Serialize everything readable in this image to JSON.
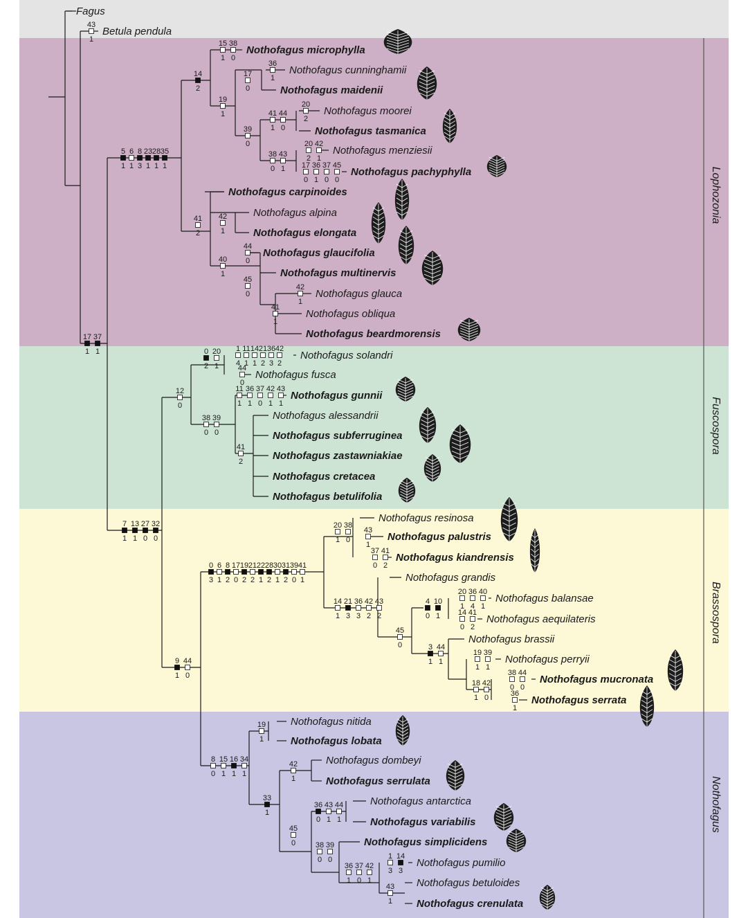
{
  "clades": {
    "lophozonia": "Lophozonia",
    "fuscospora": "Fuscospora",
    "brassospora": "Brassospora",
    "nothofagus": "Nothofagus"
  },
  "colors": {
    "outgroup": "#e4e4e5",
    "lophozonia": "#cdb0c5",
    "fuscospora": "#cde4d5",
    "brassospora": "#fdf8d5",
    "nothofagus": "#c8c6e2",
    "leaf_icon": "#1c1c1c"
  },
  "taxa": [
    {
      "name": "Fagus",
      "bold": false
    },
    {
      "name": "Betula pendula",
      "bold": false
    },
    {
      "name": "Nothofagus microphylla",
      "bold": true,
      "leaf": "rounded-leaf-icon"
    },
    {
      "name": "Nothofagus cunninghamii",
      "bold": false
    },
    {
      "name": "Nothofagus maidenii",
      "bold": true,
      "leaf": "serrate-leaf-icon"
    },
    {
      "name": "Nothofagus moorei",
      "bold": false
    },
    {
      "name": "Nothofagus tasmanica",
      "bold": true,
      "leaf": "narrow-leaf-icon"
    },
    {
      "name": "Nothofagus menziesii",
      "bold": false
    },
    {
      "name": "Nothofagus pachyphylla",
      "bold": true,
      "leaf": "rounded-leaf-icon"
    },
    {
      "name": "Nothofagus carpinoides",
      "bold": true,
      "leaf": "lanceolate-leaf-icon"
    },
    {
      "name": "Nothofagus alpina",
      "bold": false
    },
    {
      "name": "Nothofagus elongata",
      "bold": true,
      "leaf": "lanceolate-leaf-icon"
    },
    {
      "name": "Nothofagus glaucifolia",
      "bold": true,
      "leaf": "lanceolate-leaf-icon"
    },
    {
      "name": "Nothofagus multinervis",
      "bold": true,
      "leaf": "serrate-leaf-icon"
    },
    {
      "name": "Nothofagus glauca",
      "bold": false
    },
    {
      "name": "Nothofagus obliqua",
      "bold": false
    },
    {
      "name": "Nothofagus beardmorensis",
      "bold": true,
      "leaf": "rounded-leaf-icon"
    },
    {
      "name": "Nothofagus solandri",
      "bold": false
    },
    {
      "name": "Nothofagus fusca",
      "bold": false
    },
    {
      "name": "Nothofagus gunnii",
      "bold": true,
      "leaf": "rounded-leaf-icon"
    },
    {
      "name": "Nothofagus alessandrii",
      "bold": false
    },
    {
      "name": "Nothofagus subferruginea",
      "bold": true,
      "leaf": "ovate-leaf-icon"
    },
    {
      "name": "Nothofagus zastawniakiae",
      "bold": true,
      "leaf": "ovate-leaf-icon"
    },
    {
      "name": "Nothofagus cretacea",
      "bold": true,
      "leaf": "ovate-leaf-icon"
    },
    {
      "name": "Nothofagus betulifolia",
      "bold": true,
      "leaf": "ovate-leaf-icon"
    },
    {
      "name": "Nothofagus resinosa",
      "bold": false
    },
    {
      "name": "Nothofagus palustris",
      "bold": true,
      "leaf": "lanceolate-leaf-icon"
    },
    {
      "name": "Nothofagus kiandrensis",
      "bold": true,
      "leaf": "narrow-leaf-icon"
    },
    {
      "name": "Nothofagus grandis",
      "bold": false
    },
    {
      "name": "Nothofagus balansae",
      "bold": false
    },
    {
      "name": "Nothofagus aequilateris",
      "bold": false
    },
    {
      "name": "Nothofagus brassii",
      "bold": false
    },
    {
      "name": "Nothofagus perryii",
      "bold": false
    },
    {
      "name": "Nothofagus mucronata",
      "bold": true,
      "leaf": "lanceolate-leaf-icon"
    },
    {
      "name": "Nothofagus serrata",
      "bold": true,
      "leaf": "lanceolate-leaf-icon"
    },
    {
      "name": "Nothofagus nitida",
      "bold": false
    },
    {
      "name": "Nothofagus lobata",
      "bold": true,
      "leaf": "ovate-leaf-icon"
    },
    {
      "name": "Nothofagus dombeyi",
      "bold": false
    },
    {
      "name": "Nothofagus serrulata",
      "bold": true,
      "leaf": "serrate-leaf-icon"
    },
    {
      "name": "Nothofagus antarctica",
      "bold": false
    },
    {
      "name": "Nothofagus variabilis",
      "bold": true,
      "leaf": "lobed-leaf-icon"
    },
    {
      "name": "Nothofagus simplicidens",
      "bold": true,
      "leaf": "rounded-leaf-icon"
    },
    {
      "name": "Nothofagus pumilio",
      "bold": false
    },
    {
      "name": "Nothofagus betuloides",
      "bold": false
    },
    {
      "name": "Nothofagus crenulata",
      "bold": true,
      "leaf": "ovate-leaf-icon"
    }
  ],
  "characters": [
    {
      "branch": "betula",
      "chars": [
        [
          "43",
          "1",
          0
        ]
      ]
    },
    {
      "branch": "microphylla",
      "chars": [
        [
          "15",
          "1",
          0
        ],
        [
          "38",
          "0",
          0
        ]
      ]
    },
    {
      "branch": "cunninghamii",
      "chars": [
        [
          "36",
          "1",
          0
        ]
      ]
    },
    {
      "branch": "maidenii-pair",
      "chars": [
        [
          "17",
          "0",
          0
        ]
      ]
    },
    {
      "branch": "moorei",
      "chars": [
        [
          "20",
          "2",
          0
        ]
      ]
    },
    {
      "branch": "moorei-tas",
      "chars": [
        [
          "41",
          "1",
          0
        ],
        [
          "44",
          "0",
          0
        ]
      ]
    },
    {
      "branch": "clade39",
      "chars": [
        [
          "39",
          "0",
          0
        ]
      ]
    },
    {
      "branch": "menziesii",
      "chars": [
        [
          "20",
          "2",
          0
        ],
        [
          "42",
          "1",
          0
        ]
      ]
    },
    {
      "branch": "pachyphylla",
      "chars": [
        [
          "17",
          "0",
          0
        ],
        [
          "36",
          "1",
          0
        ],
        [
          "37",
          "0",
          0
        ],
        [
          "45",
          "0",
          0
        ]
      ]
    },
    {
      "branch": "menz-pachy",
      "chars": [
        [
          "38",
          "0",
          0
        ],
        [
          "43",
          "1",
          0
        ]
      ]
    },
    {
      "branch": "clade19",
      "chars": [
        [
          "19",
          "1",
          0
        ]
      ]
    },
    {
      "branch": "clade14",
      "chars": [
        [
          "14",
          "2",
          1
        ]
      ]
    },
    {
      "branch": "lopho-stem",
      "chars": [
        [
          "5",
          "1",
          1
        ],
        [
          "6",
          "1",
          0
        ],
        [
          "8",
          "3",
          1
        ],
        [
          "23",
          "1",
          1
        ],
        [
          "28",
          "1",
          1
        ],
        [
          "35",
          "1",
          1
        ]
      ]
    },
    {
      "branch": "elongata-pair",
      "chars": [
        [
          "42",
          "1",
          0
        ]
      ]
    },
    {
      "branch": "glaucifolia",
      "chars": [
        [
          "44",
          "0",
          0
        ]
      ]
    },
    {
      "branch": "glauca",
      "chars": [
        [
          "42",
          "1",
          0
        ]
      ]
    },
    {
      "branch": "clade41b",
      "chars": [
        [
          "41",
          "1",
          0
        ]
      ]
    },
    {
      "branch": "clade45",
      "chars": [
        [
          "45",
          "0",
          0
        ]
      ]
    },
    {
      "branch": "clade40",
      "chars": [
        [
          "40",
          "1",
          0
        ]
      ]
    },
    {
      "branch": "clade41a",
      "chars": [
        [
          "41",
          "2",
          0
        ]
      ]
    },
    {
      "branch": "ingroup",
      "chars": [
        [
          "17",
          "1",
          1
        ],
        [
          "37",
          "1",
          1
        ]
      ]
    },
    {
      "branch": "solandri",
      "chars": [
        [
          "1",
          "4",
          0
        ],
        [
          "11",
          "1",
          0
        ],
        [
          "14",
          "1",
          0
        ],
        [
          "21",
          "2",
          0
        ],
        [
          "36",
          "3",
          0
        ],
        [
          "42",
          "2",
          0
        ]
      ]
    },
    {
      "branch": "fusca",
      "chars": [
        [
          "44",
          "0",
          0
        ]
      ]
    },
    {
      "branch": "sol-fusca",
      "chars": [
        [
          "0",
          "2",
          1
        ],
        [
          "20",
          "1",
          0
        ]
      ]
    },
    {
      "branch": "gunnii",
      "chars": [
        [
          "11",
          "1",
          0
        ],
        [
          "36",
          "1",
          0
        ],
        [
          "37",
          "0",
          0
        ],
        [
          "42",
          "1",
          0
        ],
        [
          "43",
          "1",
          0
        ]
      ]
    },
    {
      "branch": "fusco-polytomy",
      "chars": [
        [
          "41",
          "2",
          0
        ]
      ]
    },
    {
      "branch": "gunnii-grp",
      "chars": [
        [
          "38",
          "0",
          0
        ],
        [
          "39",
          "0",
          0
        ]
      ]
    },
    {
      "branch": "fusco-stem",
      "chars": [
        [
          "12",
          "0",
          0
        ]
      ]
    },
    {
      "branch": "palustris",
      "chars": [
        [
          "43",
          "1",
          0
        ]
      ]
    },
    {
      "branch": "kiandrensis",
      "chars": [
        [
          "37",
          "0",
          0
        ],
        [
          "41",
          "2",
          0
        ]
      ]
    },
    {
      "branch": "resinosa-grp",
      "chars": [
        [
          "20",
          "1",
          0
        ],
        [
          "38",
          "0",
          0
        ]
      ]
    },
    {
      "branch": "balansae",
      "chars": [
        [
          "20",
          "1",
          0
        ],
        [
          "36",
          "4",
          0
        ],
        [
          "40",
          "1",
          0
        ]
      ]
    },
    {
      "branch": "aequilateris",
      "chars": [
        [
          "14",
          "0",
          0
        ],
        [
          "41",
          "2",
          0
        ]
      ]
    },
    {
      "branch": "bal-aeq",
      "chars": [
        [
          "4",
          "0",
          1
        ],
        [
          "10",
          "1",
          1
        ]
      ]
    },
    {
      "branch": "perryii",
      "chars": [
        [
          "19",
          "1",
          0
        ],
        [
          "39",
          "1",
          0
        ]
      ]
    },
    {
      "branch": "mucronata",
      "chars": [
        [
          "38",
          "0",
          0
        ],
        [
          "44",
          "0",
          0
        ]
      ]
    },
    {
      "branch": "serrata",
      "chars": [
        [
          "36",
          "1",
          0
        ]
      ]
    },
    {
      "branch": "muc-ser",
      "chars": [
        [
          "18",
          "1",
          0
        ],
        [
          "42",
          "0",
          0
        ]
      ]
    },
    {
      "branch": "brassii-grp",
      "chars": [
        [
          "3",
          "1",
          1
        ],
        [
          "44",
          "1",
          0
        ]
      ]
    },
    {
      "branch": "clade45b",
      "chars": [
        [
          "45",
          "0",
          0
        ]
      ]
    },
    {
      "branch": "grandis-grp",
      "chars": [
        [
          "14",
          "1",
          0
        ],
        [
          "21",
          "3",
          1
        ],
        [
          "36",
          "3",
          0
        ],
        [
          "42",
          "2",
          0
        ],
        [
          "43",
          "2",
          0
        ]
      ]
    },
    {
      "branch": "brasso-stem",
      "chars": [
        [
          "0",
          "3",
          1
        ],
        [
          "6",
          "1",
          0
        ],
        [
          "8",
          "2",
          1
        ],
        [
          "17",
          "0",
          0
        ],
        [
          "19",
          "2",
          1
        ],
        [
          "21",
          "2",
          0
        ],
        [
          "22",
          "1",
          1
        ],
        [
          "28",
          "2",
          1
        ],
        [
          "30",
          "1",
          0
        ],
        [
          "31",
          "2",
          1
        ],
        [
          "39",
          "0",
          0
        ],
        [
          "41",
          "1",
          0
        ]
      ]
    },
    {
      "branch": "nitida-pair",
      "chars": [
        [
          "19",
          "1",
          0
        ]
      ]
    },
    {
      "branch": "dombeyi-pair",
      "chars": [
        [
          "42",
          "1",
          0
        ]
      ]
    },
    {
      "branch": "antarctica-pair",
      "chars": [
        [
          "36",
          "0",
          1
        ],
        [
          "43",
          "1",
          0
        ],
        [
          "44",
          "1",
          0
        ]
      ]
    },
    {
      "branch": "pumilio",
      "chars": [
        [
          "1",
          "3",
          0
        ],
        [
          "14",
          "3",
          1
        ]
      ]
    },
    {
      "branch": "betuloides-pair",
      "chars": [
        [
          "43",
          "1",
          0
        ]
      ]
    },
    {
      "branch": "pumilio-grp",
      "chars": [
        [
          "36",
          "1",
          0
        ],
        [
          "37",
          "0",
          0
        ],
        [
          "42",
          "1",
          0
        ]
      ]
    },
    {
      "branch": "simplicidens-grp",
      "chars": [
        [
          "38",
          "0",
          0
        ],
        [
          "39",
          "0",
          0
        ]
      ]
    },
    {
      "branch": "clade45c",
      "chars": [
        [
          "45",
          "0",
          0
        ]
      ]
    },
    {
      "branch": "clade33",
      "chars": [
        [
          "33",
          "1",
          1
        ]
      ]
    },
    {
      "branch": "notho-stem",
      "chars": [
        [
          "8",
          "0",
          0
        ],
        [
          "15",
          "1",
          0
        ],
        [
          "16",
          "1",
          1
        ],
        [
          "34",
          "1",
          0
        ]
      ]
    },
    {
      "branch": "brasso-notho",
      "chars": [
        [
          "9",
          "1",
          1
        ],
        [
          "44",
          "0",
          0
        ]
      ]
    },
    {
      "branch": "fusco-rest",
      "chars": [
        [
          "7",
          "1",
          1
        ],
        [
          "13",
          "1",
          1
        ],
        [
          "27",
          "0",
          1
        ],
        [
          "32",
          "0",
          1
        ]
      ]
    }
  ]
}
